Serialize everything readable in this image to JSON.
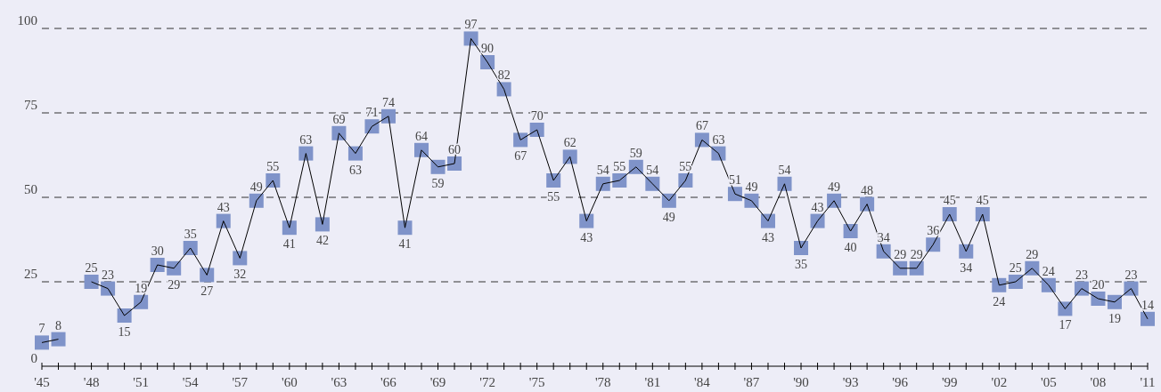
{
  "chart_data": {
    "type": "line",
    "categories": [
      "'45",
      null,
      null,
      "'48",
      null,
      null,
      "'51",
      null,
      null,
      "'54",
      null,
      null,
      "'57",
      null,
      null,
      "'60",
      null,
      null,
      "'63",
      null,
      null,
      "'66",
      null,
      null,
      "'69",
      null,
      null,
      "'72",
      null,
      null,
      "'75",
      null,
      null,
      null,
      "'78",
      null,
      null,
      "'81",
      null,
      null,
      "'84",
      null,
      null,
      "'87",
      null,
      null,
      "'90",
      null,
      null,
      "'93",
      null,
      null,
      "'96",
      null,
      null,
      "'99",
      null,
      null,
      "'02",
      null,
      null,
      "'05",
      null,
      null,
      "'08",
      null,
      null,
      "'11"
    ],
    "series": [
      {
        "color": "#7f93c9",
        "values": [
          7,
          8,
          null,
          25,
          23,
          15,
          19,
          30,
          29,
          35,
          27,
          43,
          32,
          49,
          55,
          41,
          63,
          42,
          69,
          63,
          71,
          74,
          41,
          64,
          59,
          60,
          97,
          90,
          82,
          67,
          70,
          55,
          62,
          43,
          54,
          55,
          59,
          54,
          49,
          55,
          67,
          63,
          51,
          49,
          43,
          54,
          35,
          43,
          49,
          40,
          48,
          34,
          29,
          29,
          36,
          45,
          34,
          45,
          24,
          25,
          29,
          24,
          17,
          23,
          20,
          19,
          23,
          14
        ]
      }
    ],
    "ylim": [
      0,
      100
    ],
    "yticks": [
      0,
      25,
      50,
      75,
      100
    ],
    "grid": "y",
    "marker": "square",
    "line_style": "solid",
    "data_labels": true
  }
}
